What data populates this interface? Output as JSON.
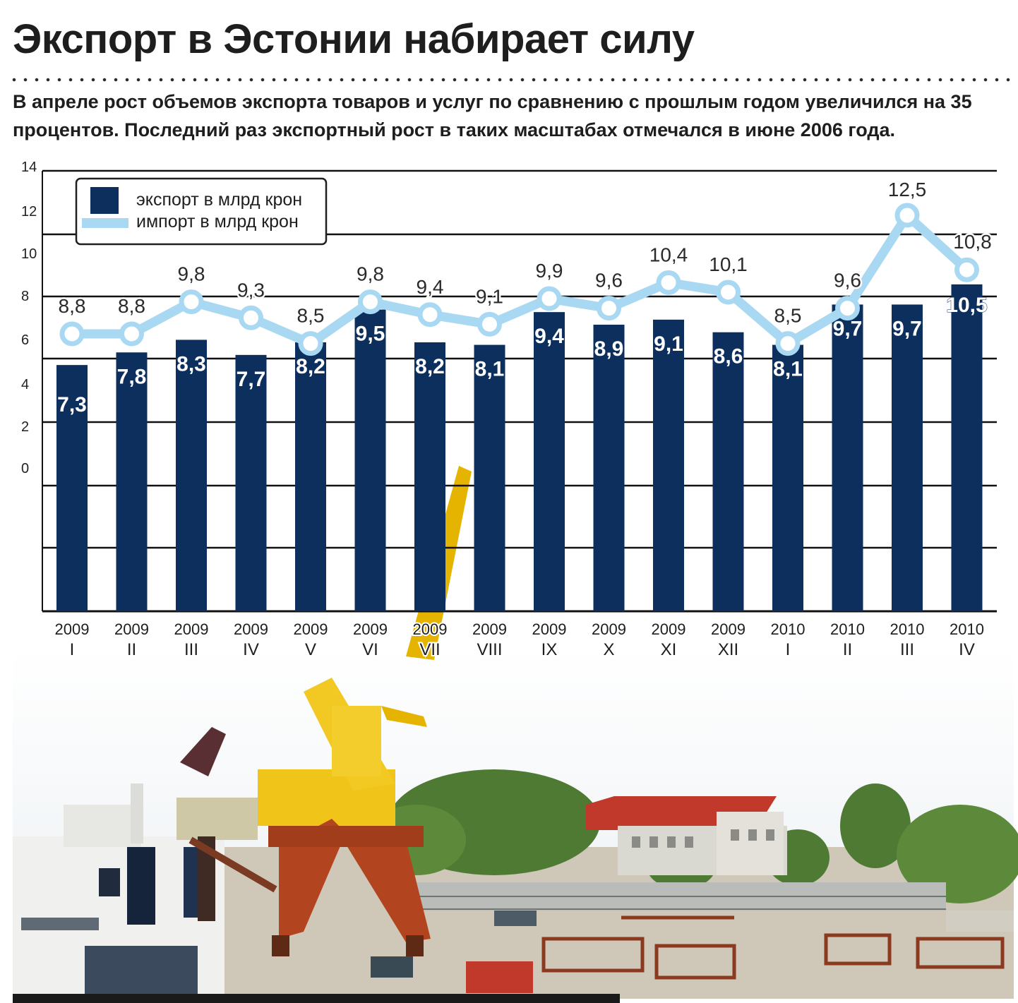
{
  "headline": "Экспорт в Эстонии набирает силу",
  "lead": "В апреле рост объемов экспорта товаров и услуг по сравнению с прошлым годом увеличился на 35 процентов. Последний раз экспортный рост в таких масштабах отмечался в июне 2006 года.",
  "chart_data": {
    "type": "bar",
    "title": "",
    "xlabel": "",
    "ylabel": "",
    "y_ticks": [
      "14",
      "12",
      "10",
      "8",
      "6",
      "4",
      "2",
      "0"
    ],
    "categories": [
      [
        "2009",
        "I"
      ],
      [
        "2009",
        "II"
      ],
      [
        "2009",
        "III"
      ],
      [
        "2009",
        "IV"
      ],
      [
        "2009",
        "V"
      ],
      [
        "2009",
        "VI"
      ],
      [
        "2009",
        "VII"
      ],
      [
        "2009",
        "VIII"
      ],
      [
        "2009",
        "IX"
      ],
      [
        "2009",
        "X"
      ],
      [
        "2009",
        "XI"
      ],
      [
        "2009",
        "XII"
      ],
      [
        "2010",
        "I"
      ],
      [
        "2010",
        "II"
      ],
      [
        "2010",
        "III"
      ],
      [
        "2010",
        "IV"
      ]
    ],
    "series": [
      {
        "name": "экспорт в млрд крон",
        "kind": "bar",
        "color": "#0d2f5e",
        "values": [
          7.3,
          7.8,
          8.3,
          7.7,
          8.2,
          9.5,
          8.2,
          8.1,
          9.4,
          8.9,
          9.1,
          8.6,
          8.1,
          9.7,
          9.7,
          10.5
        ],
        "labels": [
          "7,3",
          "7,8",
          "8,3",
          "7,7",
          "8,2",
          "9,5",
          "8,2",
          "8,1",
          "9,4",
          "8,9",
          "9,1",
          "8,6",
          "8,1",
          "9,7",
          "9,7",
          "10,5"
        ]
      },
      {
        "name": "импорт в млрд крон",
        "kind": "line",
        "color": "#a9d8f2",
        "values": [
          8.8,
          8.8,
          9.8,
          9.3,
          8.5,
          9.8,
          9.4,
          9.1,
          9.9,
          9.6,
          10.4,
          10.1,
          8.5,
          9.6,
          12.5,
          10.8
        ],
        "labels": [
          "8,8",
          "8,8",
          "9,8",
          "9,3",
          "8,5",
          "9,8",
          "9,4",
          "9,1",
          "9,9",
          "9,6",
          "10,4",
          "10,1",
          "8,5",
          "9,6",
          "12,5",
          "10,8"
        ]
      }
    ],
    "legend_position": "top-left",
    "grid": true
  },
  "colors": {
    "export_bar": "#0d2f5e",
    "import_line": "#a9d8f2",
    "grid": "#111111"
  }
}
